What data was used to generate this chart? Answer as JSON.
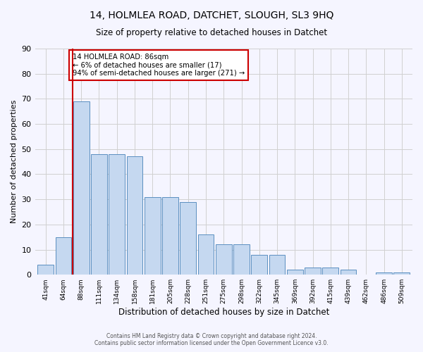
{
  "title1": "14, HOLMLEA ROAD, DATCHET, SLOUGH, SL3 9HQ",
  "title2": "Size of property relative to detached houses in Datchet",
  "xlabel": "Distribution of detached houses by size in Datchet",
  "ylabel": "Number of detached properties",
  "categories": [
    "41sqm",
    "64sqm",
    "88sqm",
    "111sqm",
    "134sqm",
    "158sqm",
    "181sqm",
    "205sqm",
    "228sqm",
    "251sqm",
    "275sqm",
    "298sqm",
    "322sqm",
    "345sqm",
    "369sqm",
    "392sqm",
    "415sqm",
    "439sqm",
    "462sqm",
    "486sqm",
    "509sqm"
  ],
  "values": [
    4,
    15,
    69,
    48,
    48,
    47,
    31,
    31,
    29,
    16,
    12,
    12,
    8,
    8,
    2,
    3,
    3,
    2,
    0,
    1,
    1
  ],
  "bar_color": "#c5d8f0",
  "bar_edge_color": "#5a8fc0",
  "annotation_text": "14 HOLMLEA ROAD: 86sqm\n← 6% of detached houses are smaller (17)\n94% of semi-detached houses are larger (271) →",
  "annotation_box_color": "white",
  "annotation_box_edge": "#cc0000",
  "red_line_color": "#cc0000",
  "footer1": "Contains HM Land Registry data © Crown copyright and database right 2024.",
  "footer2": "Contains public sector information licensed under the Open Government Licence v3.0.",
  "ylim": [
    0,
    90
  ],
  "yticks": [
    0,
    10,
    20,
    30,
    40,
    50,
    60,
    70,
    80,
    90
  ],
  "background_color": "#f5f5ff",
  "grid_color": "#d0d0d0"
}
